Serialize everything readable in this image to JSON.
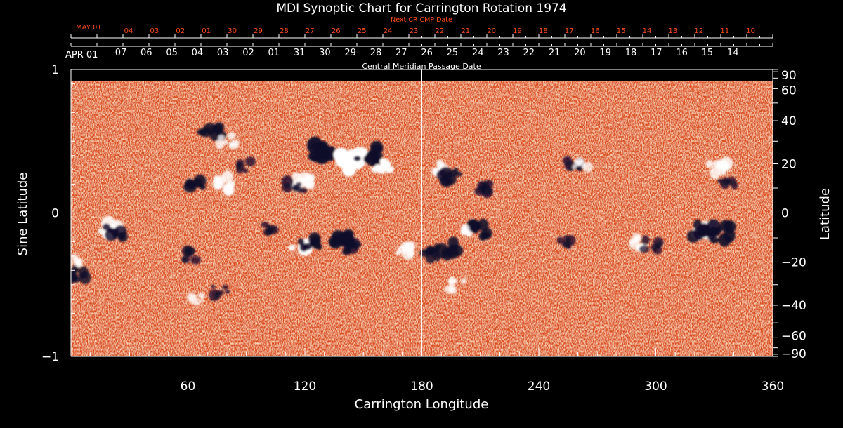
{
  "chart_data": {
    "type": "heatmap",
    "title": "MDI Synoptic Chart for Carrington Rotation 1974",
    "xlabel": "Carrington Longitude",
    "ylabel_left": "Sine Latitude",
    "ylabel_right": "Latitude",
    "xlim": [
      0,
      360
    ],
    "ylim": [
      -1,
      1
    ],
    "x_ticks": [
      60,
      120,
      180,
      240,
      300,
      360
    ],
    "y_ticks_left": [
      {
        "value": 1,
        "label": "1"
      },
      {
        "value": 0,
        "label": "0"
      },
      {
        "value": -1,
        "label": "−1"
      }
    ],
    "y_ticks_right": [
      90,
      60,
      40,
      20,
      0,
      -20,
      -40,
      -60,
      -90
    ],
    "y_tick_labels_right": [
      "90",
      "60",
      "40",
      "20",
      "0",
      "−20",
      "−40",
      "−60",
      "−90"
    ],
    "reference_lines": {
      "longitude": 180,
      "sine_latitude": 0
    },
    "cmp_axis": {
      "label": "Central Meridian Passage Date",
      "start_label": "APR 01",
      "dates": [
        "07",
        "06",
        "05",
        "04",
        "03",
        "02",
        "01",
        "31",
        "30",
        "29",
        "28",
        "27",
        "26",
        "25",
        "24",
        "23",
        "22",
        "21",
        "20",
        "19",
        "18",
        "17",
        "16",
        "15",
        "14"
      ]
    },
    "next_cmp_axis": {
      "label": "Next CR CMP Date",
      "start_label": "MAY 01",
      "dates": [
        "04",
        "03",
        "02",
        "01",
        "30",
        "29",
        "28",
        "27",
        "26",
        "25",
        "24",
        "23",
        "22",
        "21",
        "20",
        "19",
        "18",
        "17",
        "16",
        "15",
        "14",
        "13",
        "12",
        "11",
        "10"
      ]
    },
    "colors": {
      "background_field": "#e0501a",
      "positive_polarity": "#ffffff",
      "negative_polarity": "#10082a",
      "axis_text": "#ffffff",
      "next_cr_text": "#ff4a1a",
      "page_background": "#000000"
    },
    "active_regions": [
      {
        "longitude": 130,
        "latitude": 25,
        "polarity": "negative",
        "strength": 0.9
      },
      {
        "longitude": 142,
        "latitude": 21,
        "polarity": "positive",
        "strength": 1.0
      },
      {
        "longitude": 152,
        "latitude": 24,
        "polarity": "negative",
        "strength": 0.8
      },
      {
        "longitude": 160,
        "latitude": 18,
        "polarity": "positive",
        "strength": 0.9
      },
      {
        "longitude": 118,
        "latitude": 12,
        "polarity": "positive",
        "strength": 0.6
      },
      {
        "longitude": 115,
        "latitude": 11,
        "polarity": "negative",
        "strength": 0.5
      },
      {
        "longitude": 72,
        "latitude": 35,
        "polarity": "negative",
        "strength": 0.7
      },
      {
        "longitude": 80,
        "latitude": 30,
        "polarity": "positive",
        "strength": 0.5
      },
      {
        "longitude": 65,
        "latitude": 13,
        "polarity": "negative",
        "strength": 0.7
      },
      {
        "longitude": 78,
        "latitude": 12,
        "polarity": "positive",
        "strength": 0.6
      },
      {
        "longitude": 90,
        "latitude": 19,
        "polarity": "negative",
        "strength": 0.4
      },
      {
        "longitude": 188,
        "latitude": 18,
        "polarity": "positive",
        "strength": 0.5
      },
      {
        "longitude": 195,
        "latitude": 15,
        "polarity": "negative",
        "strength": 0.6
      },
      {
        "longitude": 212,
        "latitude": 10,
        "polarity": "negative",
        "strength": 0.5
      },
      {
        "longitude": 257,
        "latitude": 21,
        "polarity": "negative",
        "strength": 0.5
      },
      {
        "longitude": 262,
        "latitude": 20,
        "polarity": "positive",
        "strength": 0.4
      },
      {
        "longitude": 332,
        "latitude": 18,
        "polarity": "positive",
        "strength": 0.6
      },
      {
        "longitude": 337,
        "latitude": 12,
        "polarity": "negative",
        "strength": 0.4
      },
      {
        "longitude": 20,
        "latitude": -7,
        "polarity": "positive",
        "strength": 0.7
      },
      {
        "longitude": 23,
        "latitude": -8,
        "polarity": "negative",
        "strength": 0.6
      },
      {
        "longitude": 3,
        "latitude": -25,
        "polarity": "negative",
        "strength": 0.6
      },
      {
        "longitude": 2,
        "latitude": -20,
        "polarity": "positive",
        "strength": 0.4
      },
      {
        "longitude": 62,
        "latitude": -17,
        "polarity": "negative",
        "strength": 0.4
      },
      {
        "longitude": 118,
        "latitude": -12,
        "polarity": "positive",
        "strength": 0.8
      },
      {
        "longitude": 123,
        "latitude": -12,
        "polarity": "negative",
        "strength": 0.7
      },
      {
        "longitude": 138,
        "latitude": -11,
        "polarity": "negative",
        "strength": 0.8
      },
      {
        "longitude": 143,
        "latitude": -14,
        "polarity": "negative",
        "strength": 0.5
      },
      {
        "longitude": 102,
        "latitude": -6,
        "polarity": "negative",
        "strength": 0.4
      },
      {
        "longitude": 172,
        "latitude": -15,
        "polarity": "positive",
        "strength": 0.5
      },
      {
        "longitude": 185,
        "latitude": -16,
        "polarity": "negative",
        "strength": 0.6
      },
      {
        "longitude": 193,
        "latitude": -14,
        "polarity": "negative",
        "strength": 0.7
      },
      {
        "longitude": 210,
        "latitude": -7,
        "polarity": "negative",
        "strength": 0.7
      },
      {
        "longitude": 205,
        "latitude": -8,
        "polarity": "positive",
        "strength": 0.4
      },
      {
        "longitude": 255,
        "latitude": -12,
        "polarity": "negative",
        "strength": 0.4
      },
      {
        "longitude": 290,
        "latitude": -12,
        "polarity": "positive",
        "strength": 0.5
      },
      {
        "longitude": 298,
        "latitude": -13,
        "polarity": "negative",
        "strength": 0.4
      },
      {
        "longitude": 325,
        "latitude": -6,
        "polarity": "positive",
        "strength": 0.8
      },
      {
        "longitude": 323,
        "latitude": -7,
        "polarity": "negative",
        "strength": 0.7
      },
      {
        "longitude": 335,
        "latitude": -8,
        "polarity": "negative",
        "strength": 0.8
      },
      {
        "longitude": 77,
        "latitude": -33,
        "polarity": "negative",
        "strength": 0.4
      },
      {
        "longitude": 65,
        "latitude": -37,
        "polarity": "positive",
        "strength": 0.3
      },
      {
        "longitude": 198,
        "latitude": -30,
        "polarity": "positive",
        "strength": 0.4
      }
    ]
  }
}
